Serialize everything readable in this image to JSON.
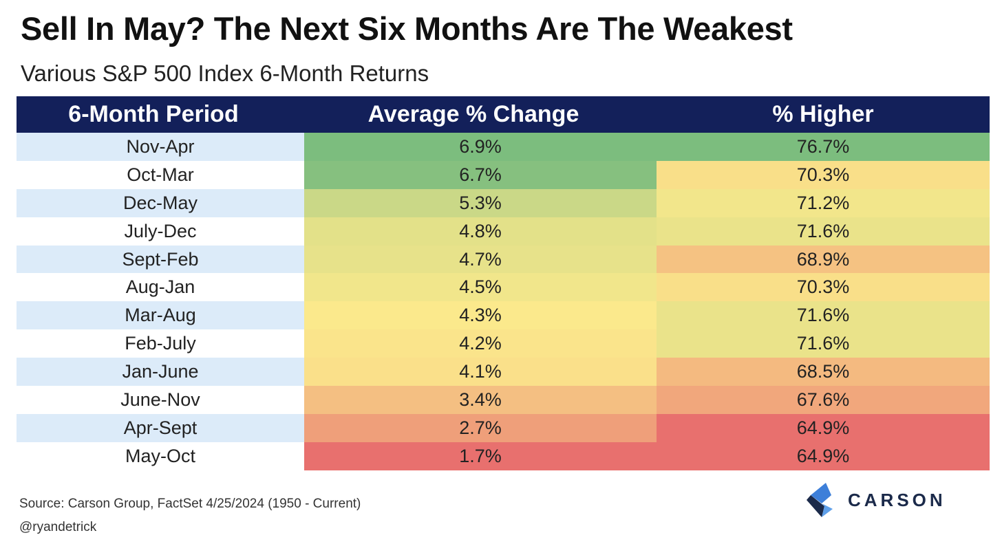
{
  "title": "Sell In May? The Next Six Months Are The Weakest",
  "subtitle": "Various S&P 500 Index 6-Month Returns",
  "source": "Source: Carson Group, FactSet 4/25/2024 (1950 - Current)",
  "handle": "@ryandetrick",
  "logo": {
    "text": "CARSON",
    "icon": "carson-chevron-icon"
  },
  "colors": {
    "header_bg": "#13205a",
    "green": "#7cbd7e",
    "yellow": "#fbe98c",
    "red": "#e8706e",
    "period_stripe": "#dcebf9"
  },
  "chart_data": {
    "type": "table",
    "columns": [
      "6-Month Period",
      "Average % Change",
      "% Higher"
    ],
    "rows": [
      {
        "period": "Nov-Apr",
        "avg": "6.9%",
        "avg_value": 6.9,
        "higher": "76.7%",
        "higher_value": 76.7
      },
      {
        "period": "Oct-Mar",
        "avg": "6.7%",
        "avg_value": 6.7,
        "higher": "70.3%",
        "higher_value": 70.3
      },
      {
        "period": "Dec-May",
        "avg": "5.3%",
        "avg_value": 5.3,
        "higher": "71.2%",
        "higher_value": 71.2
      },
      {
        "period": "July-Dec",
        "avg": "4.8%",
        "avg_value": 4.8,
        "higher": "71.6%",
        "higher_value": 71.6
      },
      {
        "period": "Sept-Feb",
        "avg": "4.7%",
        "avg_value": 4.7,
        "higher": "68.9%",
        "higher_value": 68.9
      },
      {
        "period": "Aug-Jan",
        "avg": "4.5%",
        "avg_value": 4.5,
        "higher": "70.3%",
        "higher_value": 70.3
      },
      {
        "period": "Mar-Aug",
        "avg": "4.3%",
        "avg_value": 4.3,
        "higher": "71.6%",
        "higher_value": 71.6
      },
      {
        "period": "Feb-July",
        "avg": "4.2%",
        "avg_value": 4.2,
        "higher": "71.6%",
        "higher_value": 71.6
      },
      {
        "period": "Jan-June",
        "avg": "4.1%",
        "avg_value": 4.1,
        "higher": "68.5%",
        "higher_value": 68.5
      },
      {
        "period": "June-Nov",
        "avg": "3.4%",
        "avg_value": 3.4,
        "higher": "67.6%",
        "higher_value": 67.6
      },
      {
        "period": "Apr-Sept",
        "avg": "2.7%",
        "avg_value": 2.7,
        "higher": "64.9%",
        "higher_value": 64.9
      },
      {
        "period": "May-Oct",
        "avg": "1.7%",
        "avg_value": 1.7,
        "higher": "64.9%",
        "higher_value": 64.9
      }
    ]
  }
}
